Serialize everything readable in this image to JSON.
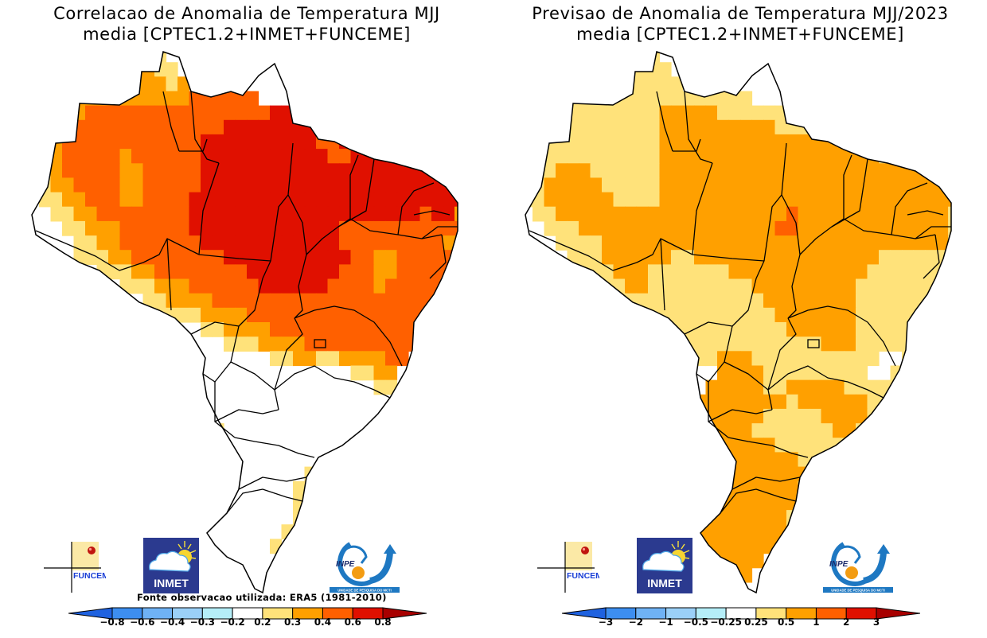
{
  "colors": {
    "map_border": "#000000",
    "background": "#ffffff",
    "funceme_blue": "#1a3fd6",
    "inmet_navy": "#2b3a8f",
    "inpe_blue": "#1e78c2",
    "inpe_orange": "#f39c12"
  },
  "logos": {
    "funceme": "FUNCEME",
    "inmet": "INMET",
    "inpe": "INPE",
    "inpe_tagline": "UNIDADE DE PESQUISA DO MCTI"
  },
  "chart_data": [
    {
      "type": "heatmap",
      "title": "Correlacao de Anomalia de Temperatura MJJ",
      "subtitle": "media [CPTEC1.2+INMET+FUNCEME]",
      "source_note": "Fonte observacao utilizada: ERA5 (1981-2010)",
      "region": "Brazil",
      "variable": "Correlation of temperature anomaly",
      "colorbar": {
        "levels": [
          "-0.8",
          "-0.6",
          "-0.4",
          "-0.3",
          "-0.2",
          "0.2",
          "0.3",
          "0.4",
          "0.6",
          "0.8"
        ],
        "colors": [
          "#1f62e0",
          "#3d8ef0",
          "#6fb2f5",
          "#9bd0f8",
          "#b5eef8",
          "#ffffff",
          "#ffe27a",
          "#ffa000",
          "#ff6000",
          "#e01000",
          "#a80000"
        ],
        "extend": "both",
        "placement": "bottom"
      },
      "regions_summary": [
        {
          "area": "Para / Maranhao / Piaui / Ceara (north-central & northeast)",
          "class": "0.6 to 0.8"
        },
        {
          "area": "Amazonas / Bahia interior / Tocantins",
          "class": "0.4 to 0.6"
        },
        {
          "area": "Roraima / western Amazonas edges / Sergipe-Alagoas coast",
          "class": "0.3 to 0.4"
        },
        {
          "area": "Mato Grosso do Sul west / Parana-Santa Catarina patches",
          "class": "0.2 to 0.3"
        },
        {
          "area": "Acre / Rondonia south / Goias / Minas Gerais / Sao Paulo / Rio Grande do Sul",
          "class": "-0.2 to 0.2"
        }
      ],
      "grid_rows": [
        "...........yy...........................",
        "..........ooyy....w.....................",
        "....oooy..oooyo...rr....................",
        "...oooooooooooorrrrrr...................",
        "...ooorrrrrrrrrrrrrrrrRRRR..............",
        "...orrrrrrrrrrrrrrRRRRRRRRRrr...........",
        "...orrrrrrrrrrrrRRRRRRRRRRrrRRRRRR......",
        "...orrrrrorrrrrrRRRRRRRRRRRrrRRRRRRRR...",
        "..yorrrrroorrrrrRRRRRRRRRRRRRRRRRRRRR...",
        ".yyoorrrroorrrrrRRRRRRRRRRRRRRRRRRRRRRR.",
        ".wyyoorrroorrrrRRRRRRRRRRRRRRRRRRRRRRRR.",
        "..wyyoorrrrrrrrRRRRRRRRRRRRRRRRRRRRrRRo.",
        "...wyyooorrrrrrRRRRRRRRRRRRRrrrrrrrrrrro",
        "....wyyoorrrrrrrRRRRRRRRRRRRrrrrrrrrrooo",
        ".....yyyoorrrrrrrrRRRRRRRRRRRrroorrrrroo",
        "......wyyyoorrrrrrrrRRRRRRRRrrroorrrrroo",
        ".......wwyyyooorrrrrrRRRRRRrrrrorrrrrrr.",
        "........wwwyyoooorrrrrrrrrrrrrrrrrrrrr..",
        "...........wyyyyoooorrrrrrrrrrrrrrrrr...",
        "............wwwwyyoooorrrrrrrrrrrrrrr...",
        "................wwyyyoooorrrrrrrrrrr....",
        "...................wwwyyooyyoooorr......",
        "......................wwwwwwwyyoo.......",
        "............yyww.wwwwwwwwwwwwwwyy.......",
        "...........yyyywwwwwwwwwwwwwwwwww.......",
        "...........yyyyyywwwwwwwwwwwwwww........",
        "............yoyyyywwwwwwwwwwwww.........",
        ".............ooyyywwwwwwwwwwww..........",
        "..............yyywwwwwwwwwwy............",
        "..............oyywwwwwwwwyo.............",
        "...............yyywwwwwwyyo.............",
        "...............yyywwwwwwyo..............",
        "..............yyywwwwwwwy...............",
        ".............wwwwwwwwwwy................",
        "..............wwwwwwwwy.................",
        "................wwwwww..................",
        "..................www...................",
        "...................w...................."
      ],
      "grid_legend": {
        ".": "outside",
        "w": "-0.2 to 0.2",
        "y": "0.2 to 0.3",
        "o": "0.3 to 0.4",
        "r": "0.4 to 0.6",
        "R": "0.6 to 0.8"
      }
    },
    {
      "type": "heatmap",
      "title": "Previsao de Anomalia de Temperatura MJJ/2023",
      "subtitle": "media [CPTEC1.2+INMET+FUNCEME]",
      "region": "Brazil",
      "variable": "Temperature anomaly forecast",
      "colorbar": {
        "levels": [
          "-3",
          "-2",
          "-1",
          "-0.5",
          "-0.25",
          "0.25",
          "0.5",
          "1",
          "2",
          "3"
        ],
        "colors": [
          "#1f62e0",
          "#3d8ef0",
          "#6fb2f5",
          "#9bd0f8",
          "#b5eef8",
          "#ffffff",
          "#ffe27a",
          "#ffa000",
          "#ff6000",
          "#e01000",
          "#a80000"
        ],
        "extend": "both",
        "placement": "bottom"
      },
      "regions_summary": [
        {
          "area": "Para / Mato Grosso north / Tocantins / Maranhao / Piaui / Ceara / Mato Grosso do Sul / Parana / Santa Catarina / Rio Grande do Sul",
          "class": "0.5 to 1"
        },
        {
          "area": "Roraima / Amazonas north / Acre / Amapa / Mato Grosso south / Goias / Bahia / Minas Gerais / Sao Paulo coast",
          "class": "0.25 to 0.5"
        },
        {
          "area": "Para-Tocantins border (small patch)",
          "class": "1 to 2"
        },
        {
          "area": "Bahia interior / Minas Gerais north (small patches)",
          "class": "-0.25 to 0.25"
        }
      ],
      "grid_rows": [
        "...........yy...........................",
        "..........yyyy....w.....................",
        "....yyyy..yyyyy...yy....................",
        "...yyyyyyyyyyyyyyyyyy...................",
        "...yyyyyyyyyyoooooyyyyyyyy..............",
        "...yyyyyyyyyyooooooooooyyyyy............",
        "...yyyyyyyyyyoooooooooooooooooyyyy......",
        "...yyyyyyyyyyoooooooooooooooooooyyyyy...",
        "..yyoooyyyyyyoooooooooooooooooooooooo...",
        ".yyoooooyyyyyooooooooooooooooooooooooo..",
        ".yyooooooyyyyoooooooooooooooooooooooooo.",
        "..yyooooooooooooooooooooRoooooooooooooy.",
        "...yyyoooooooooooooooooRRoooooooooooooyy",
        "....yyyyooooooooooooooooooooooooooooooyy",
        ".....yyyooooooyyooooooooooooooooyyyyyyyy",
        "......yyyoooyyyyyyyooooooooooooyyyyyyyy.",
        ".......yyyooyyyyyyyyyoooooooooyyyyyyyww.",
        "........yyyyyyyyyyyyyyooooooooyyyyyyyww.",
        "...........yyyyyyyyyyyyoooooooyyyyyyyy..",
        "............yyyyyyyyyyyyooooooyyyyyyyy..",
        "...............yyyyyyyyyyyyoooyyyyyyyy..",
        "................yyoooyyyyyyyyyyywwyyy...",
        "..................ooooyyyyyyyyywwyyy....",
        "............oooo.oooooyyoooooyyyyyyy....",
        "...........oooooooooooooyooooooyyyyy....",
        "...........oooooooooooyyyyyooooyyyy.....",
        "............oooooooooyyyyyyyooyyyy......",
        ".............ooooooooooyyyyyyyyyyy......",
        "..............oooooooooooyyyyyyyy.......",
        "..............ooooooooooooyyyyyy........",
        "...............ooooooooooyyyyy..........",
        "...............ooooooooooyy.............",
        "..............ooooooooooy...............",
        ".............oooooooooooy...............",
        "..............ooooooooooy...............",
        "................oooooo..................",
        "..................ooo...................",
        "...................o...................."
      ],
      "grid_legend": {
        ".": "outside",
        "w": "-0.25 to 0.25",
        "y": "0.25 to 0.5",
        "o": "0.5 to 1",
        "R": "1 to 2"
      }
    }
  ]
}
